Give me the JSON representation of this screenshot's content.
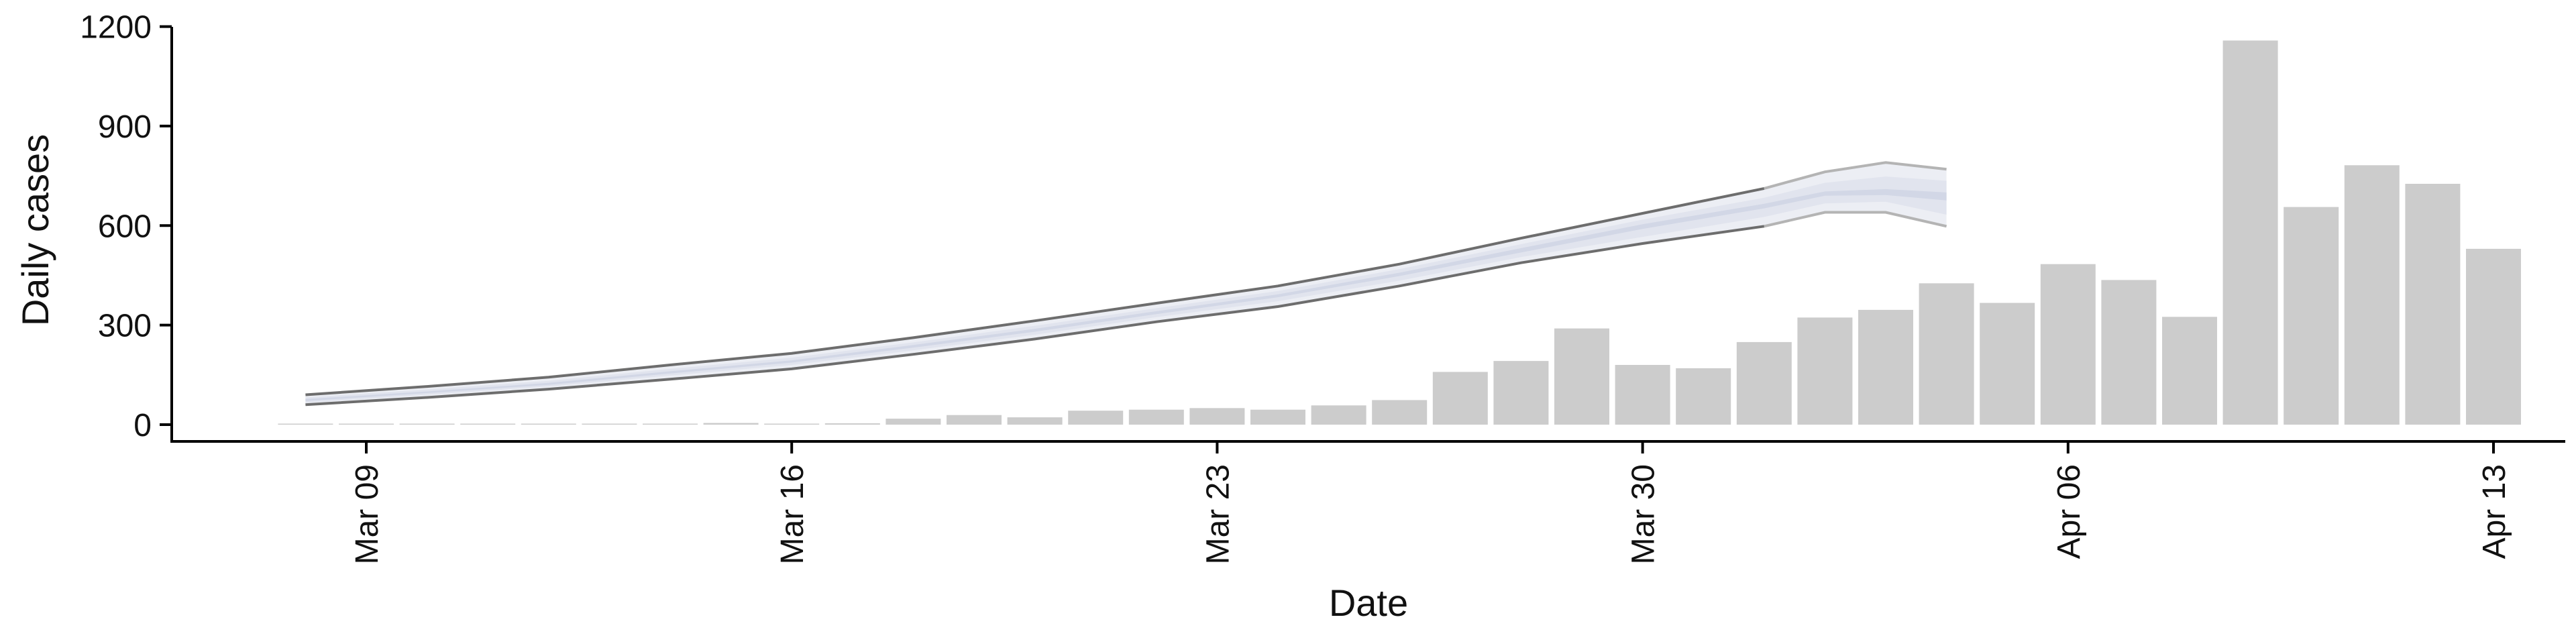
{
  "chart_data": {
    "type": "bar",
    "title": "",
    "xlabel": "Date",
    "ylabel": "Daily cases",
    "ylim": [
      -40,
      1200
    ],
    "xlim": [
      "2020-03-01",
      "2020-04-13"
    ],
    "yticks": [
      0,
      300,
      600,
      900,
      1200
    ],
    "xticks": [
      {
        "date": "2020-03-09",
        "label": "Mar 09"
      },
      {
        "date": "2020-03-16",
        "label": "Mar 16"
      },
      {
        "date": "2020-03-23",
        "label": "Mar 23"
      },
      {
        "date": "2020-03-30",
        "label": "Mar 30"
      },
      {
        "date": "2020-04-06",
        "label": "Apr 06"
      },
      {
        "date": "2020-04-13",
        "label": "Apr 13"
      }
    ],
    "grid": false,
    "legend": "none",
    "colors": {
      "bars": "#cccccc",
      "band_outer": "#eceef4",
      "band_mid": "#e1e4ee",
      "band_inner": "#d2d7e6",
      "line_upper": "#6d6d6d",
      "line_lower": "#6d6d6d",
      "line_faded": "#b4b4b4",
      "axis": "#000000"
    },
    "bars": [
      {
        "date": "2020-03-08",
        "value": 1
      },
      {
        "date": "2020-03-09",
        "value": 0
      },
      {
        "date": "2020-03-10",
        "value": 1
      },
      {
        "date": "2020-03-11",
        "value": 2
      },
      {
        "date": "2020-03-12",
        "value": 0
      },
      {
        "date": "2020-03-13",
        "value": 0
      },
      {
        "date": "2020-03-14",
        "value": 2
      },
      {
        "date": "2020-03-15",
        "value": 5
      },
      {
        "date": "2020-03-16",
        "value": 3
      },
      {
        "date": "2020-03-17",
        "value": 4
      },
      {
        "date": "2020-03-18",
        "value": 18
      },
      {
        "date": "2020-03-19",
        "value": 29
      },
      {
        "date": "2020-03-20",
        "value": 22
      },
      {
        "date": "2020-03-21",
        "value": 42
      },
      {
        "date": "2020-03-22",
        "value": 45
      },
      {
        "date": "2020-03-23",
        "value": 50
      },
      {
        "date": "2020-03-24",
        "value": 45
      },
      {
        "date": "2020-03-25",
        "value": 58
      },
      {
        "date": "2020-03-26",
        "value": 74
      },
      {
        "date": "2020-03-27",
        "value": 159
      },
      {
        "date": "2020-03-28",
        "value": 192
      },
      {
        "date": "2020-03-29",
        "value": 290
      },
      {
        "date": "2020-03-30",
        "value": 180
      },
      {
        "date": "2020-03-31",
        "value": 170
      },
      {
        "date": "2020-04-01",
        "value": 249
      },
      {
        "date": "2020-04-02",
        "value": 323
      },
      {
        "date": "2020-04-03",
        "value": 346
      },
      {
        "date": "2020-04-04",
        "value": 426
      },
      {
        "date": "2020-04-05",
        "value": 367
      },
      {
        "date": "2020-04-06",
        "value": 484
      },
      {
        "date": "2020-04-07",
        "value": 436
      },
      {
        "date": "2020-04-08",
        "value": 325
      },
      {
        "date": "2020-04-09",
        "value": 1158
      },
      {
        "date": "2020-04-10",
        "value": 656
      },
      {
        "date": "2020-04-11",
        "value": 782
      },
      {
        "date": "2020-04-12",
        "value": 726
      },
      {
        "date": "2020-04-13",
        "value": 530
      }
    ],
    "estimate": {
      "dates": [
        "2020-03-08",
        "2020-03-10",
        "2020-03-12",
        "2020-03-14",
        "2020-03-16",
        "2020-03-18",
        "2020-03-20",
        "2020-03-22",
        "2020-03-24",
        "2020-03-26",
        "2020-03-28",
        "2020-03-30",
        "2020-04-01",
        "2020-04-02",
        "2020-04-03",
        "2020-04-04"
      ],
      "upper": [
        90,
        115,
        143,
        180,
        215,
        262,
        313,
        366,
        418,
        484,
        562,
        637,
        712,
        762,
        790,
        770
      ],
      "lower": [
        60,
        82,
        107,
        137,
        168,
        212,
        258,
        310,
        356,
        418,
        488,
        546,
        598,
        640,
        640,
        598
      ],
      "mid_upper": [
        82,
        106,
        132,
        168,
        202,
        248,
        298,
        351,
        403,
        469,
        544,
        618,
        684,
        729,
        748,
        735
      ],
      "mid_lower": [
        66,
        90,
        115,
        148,
        180,
        224,
        271,
        324,
        372,
        434,
        505,
        566,
        626,
        667,
        672,
        633
      ],
      "inner_upper": [
        77,
        100,
        126,
        161,
        194,
        240,
        289,
        342,
        393,
        458,
        532,
        604,
        666,
        703,
        710,
        700
      ],
      "inner_lower": [
        71,
        95,
        120,
        154,
        187,
        232,
        280,
        333,
        384,
        448,
        519,
        590,
        652,
        690,
        692,
        676
      ],
      "faded_from": "2020-04-01"
    }
  }
}
